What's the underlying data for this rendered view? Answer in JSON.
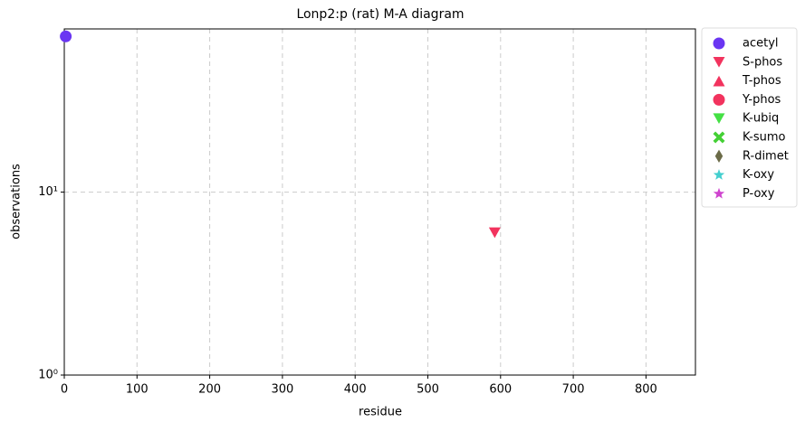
{
  "chart_data": {
    "type": "scatter",
    "title": "Lonp2:p (rat) M-A diagram",
    "x_label": "residue",
    "y_label": "observations",
    "xlim": [
      0,
      868
    ],
    "xticks": [
      0,
      100,
      200,
      300,
      400,
      500,
      600,
      700,
      800
    ],
    "ylim": [
      1,
      78
    ],
    "yticks": [
      {
        "value": 1,
        "label": "10⁰"
      },
      {
        "value": 10,
        "label": "10¹"
      }
    ],
    "y_scale": "log",
    "grid": true,
    "legend": "outside right",
    "series": [
      {
        "name": "acetyl",
        "color": "#6a35f2",
        "marker": "circle",
        "x": [
          2
        ],
        "values": [
          71
        ]
      },
      {
        "name": "S-phos",
        "color": "#f2335e",
        "marker": "triangle-down",
        "x": [
          592
        ],
        "values": [
          6
        ]
      },
      {
        "name": "T-phos",
        "color": "#f2335e",
        "marker": "triangle-up",
        "x": [],
        "values": []
      },
      {
        "name": "Y-phos",
        "color": "#f2335e",
        "marker": "circle",
        "x": [],
        "values": []
      },
      {
        "name": "K-ubiq",
        "color": "#44e044",
        "marker": "triangle-down",
        "x": [],
        "values": []
      },
      {
        "name": "K-sumo",
        "color": "#44d035",
        "marker": "x",
        "x": [],
        "values": []
      },
      {
        "name": "R-dimet",
        "color": "#6b6b48",
        "marker": "diamond",
        "x": [],
        "values": []
      },
      {
        "name": "K-oxy",
        "color": "#44cfcf",
        "marker": "star",
        "x": [],
        "values": []
      },
      {
        "name": "P-oxy",
        "color": "#cf44cf",
        "marker": "star",
        "x": [],
        "values": []
      }
    ]
  }
}
